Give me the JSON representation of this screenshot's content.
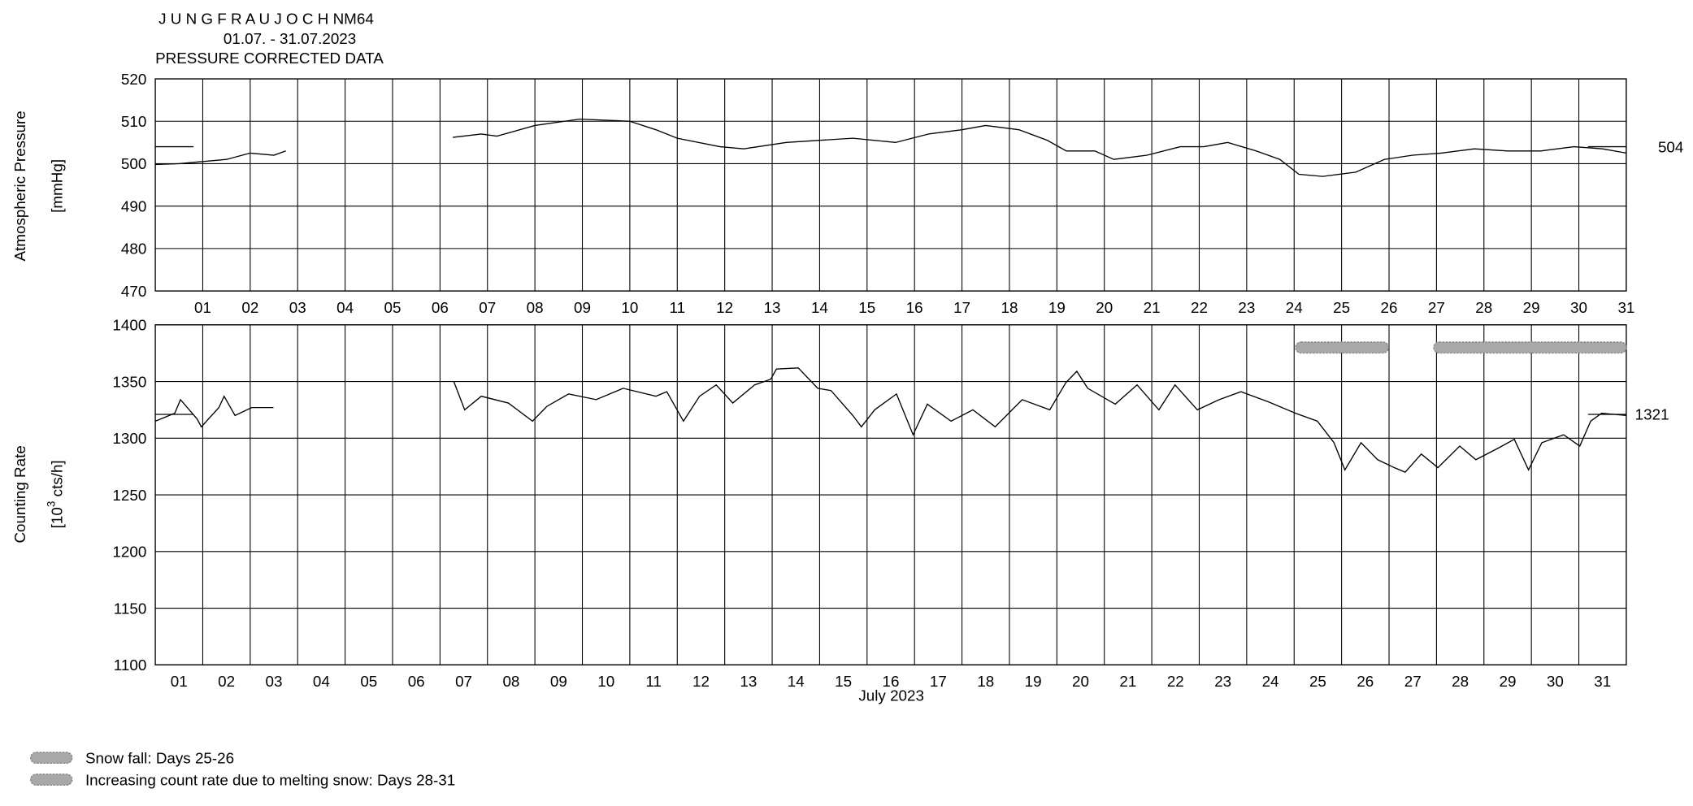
{
  "chart_data": [
    {
      "type": "line",
      "title": "J U N G F R A U J O C H   NM64",
      "subtitle": [
        "01.07. - 31.07.2023",
        "PRESSURE CORRECTED DATA"
      ],
      "ylabel": [
        "Atmospheric Pressure",
        "[mmHg]"
      ],
      "xlim": [
        1,
        32
      ],
      "xticks": [
        {
          "value": 2,
          "label": "01"
        },
        {
          "value": 3,
          "label": "02"
        },
        {
          "value": 4,
          "label": "03"
        },
        {
          "value": 5,
          "label": "04"
        },
        {
          "value": 6,
          "label": "05"
        },
        {
          "value": 7,
          "label": "06"
        },
        {
          "value": 8,
          "label": "07"
        },
        {
          "value": 9,
          "label": "08"
        },
        {
          "value": 10,
          "label": "09"
        },
        {
          "value": 11,
          "label": "10"
        },
        {
          "value": 12,
          "label": "11"
        },
        {
          "value": 13,
          "label": "12"
        },
        {
          "value": 14,
          "label": "13"
        },
        {
          "value": 15,
          "label": "14"
        },
        {
          "value": 16,
          "label": "15"
        },
        {
          "value": 17,
          "label": "16"
        },
        {
          "value": 18,
          "label": "17"
        },
        {
          "value": 19,
          "label": "18"
        },
        {
          "value": 20,
          "label": "19"
        },
        {
          "value": 21,
          "label": "20"
        },
        {
          "value": 22,
          "label": "21"
        },
        {
          "value": 23,
          "label": "22"
        },
        {
          "value": 24,
          "label": "23"
        },
        {
          "value": 25,
          "label": "24"
        },
        {
          "value": 26,
          "label": "25"
        },
        {
          "value": 27,
          "label": "26"
        },
        {
          "value": 28,
          "label": "27"
        },
        {
          "value": 29,
          "label": "28"
        },
        {
          "value": 30,
          "label": "29"
        },
        {
          "value": 31,
          "label": "30"
        },
        {
          "value": 32,
          "label": "31"
        }
      ],
      "ylim": [
        470,
        520
      ],
      "yticks": [
        470,
        480,
        490,
        500,
        510,
        520
      ],
      "grid": true,
      "color": "#000000",
      "x": [
        1,
        1.5,
        2,
        2.5,
        3,
        3.5,
        3.75,
        5,
        7.27,
        7.87,
        8.2,
        9.0,
        9.94,
        11.0,
        11.55,
        12.0,
        12.9,
        13.4,
        14.3,
        15.0,
        15.7,
        16.6,
        17.3,
        18.0,
        18.5,
        19.2,
        19.8,
        20.2,
        20.8,
        21.2,
        21.9,
        22.6,
        23.1,
        23.6,
        24.2,
        24.7,
        25.1,
        25.6,
        26.3,
        26.9,
        27.5,
        28.1,
        28.8,
        29.5,
        30.2,
        30.9,
        31.5,
        32
      ],
      "values": [
        499.8,
        500,
        500.5,
        501,
        502.5,
        502,
        503,
        null,
        506.2,
        507,
        506.5,
        509,
        510.5,
        510,
        508,
        506,
        504,
        503.5,
        505,
        505.5,
        506,
        505,
        507,
        508,
        509,
        508,
        505.5,
        503,
        503,
        501,
        502,
        504,
        504,
        505,
        503,
        501,
        497.5,
        497,
        498,
        501,
        502,
        502.5,
        503.5,
        503,
        503,
        504,
        503.5,
        502.5
      ],
      "reference_line": 504
    },
    {
      "type": "line",
      "ylabel": [
        "Counting Rate",
        "[10",
        "3",
        "cts/h]"
      ],
      "xlabel": "July 2023",
      "xlim": [
        1,
        32
      ],
      "categories": [
        "01",
        "02",
        "03",
        "04",
        "05",
        "06",
        "07",
        "08",
        "09",
        "10",
        "11",
        "12",
        "13",
        "14",
        "15",
        "16",
        "17",
        "18",
        "19",
        "20",
        "21",
        "22",
        "23",
        "24",
        "25",
        "26",
        "27",
        "28",
        "29",
        "30",
        "31"
      ],
      "ylim": [
        1100,
        1400
      ],
      "yticks": [
        1100,
        1150,
        1200,
        1250,
        1300,
        1350,
        1400
      ],
      "grid": true,
      "color": "#000000",
      "x": [
        1,
        1.41,
        1.53,
        1.88,
        1.97,
        2.34,
        2.45,
        2.68,
        3.03,
        3.49,
        5,
        7.29,
        7.52,
        7.87,
        8.44,
        8.95,
        9.25,
        9.71,
        10.29,
        10.86,
        11.55,
        11.78,
        12.13,
        12.47,
        12.82,
        13.17,
        13.63,
        13.97,
        14.09,
        14.55,
        14.96,
        15.24,
        15.7,
        15.88,
        16.16,
        16.62,
        16.97,
        17.27,
        17.77,
        18.23,
        18.7,
        19.27,
        19.85,
        20.19,
        20.42,
        20.65,
        21.23,
        21.69,
        22.15,
        22.49,
        22.96,
        23.42,
        23.88,
        24.46,
        25.03,
        25.49,
        25.84,
        26.07,
        26.41,
        26.76,
        27.11,
        27.34,
        27.68,
        28.03,
        28.49,
        28.83,
        29.29,
        29.64,
        29.94,
        30.22,
        30.68,
        31.02,
        31.25,
        31.48,
        32
      ],
      "values": [
        1315,
        1322,
        1334,
        1317,
        1310,
        1327,
        1337,
        1320,
        1327,
        1327,
        null,
        1350,
        1325,
        1337,
        1331,
        1315,
        1328,
        1339,
        1334,
        1344,
        1337,
        1341,
        1315,
        1337,
        1347,
        1331,
        1347,
        1352,
        1361,
        1362,
        1344,
        1342,
        1320,
        1310,
        1325,
        1339,
        1303,
        1330,
        1315,
        1325,
        1310,
        1334,
        1325,
        1349,
        1359,
        1344,
        1330,
        1347,
        1325,
        1347,
        1325,
        1334,
        1341,
        1332,
        1322,
        1315,
        1296,
        1272,
        1296,
        1281,
        1274,
        1270,
        1286,
        1274,
        1293,
        1281,
        1291,
        1299,
        1272,
        1296,
        1303,
        1293,
        1315,
        1322,
        1320
      ],
      "reference_line": 1321,
      "annotations": [
        {
          "label": "Snow fall: Days 25-26",
          "start": 25.03,
          "end": 26.99,
          "level": 1380,
          "color": "#a8a8a8"
        },
        {
          "label": "Increasing count rate due to melting snow: Days 28-31",
          "start": 27.94,
          "end": 32,
          "level": 1380,
          "color": "#a8a8a8"
        }
      ]
    }
  ]
}
